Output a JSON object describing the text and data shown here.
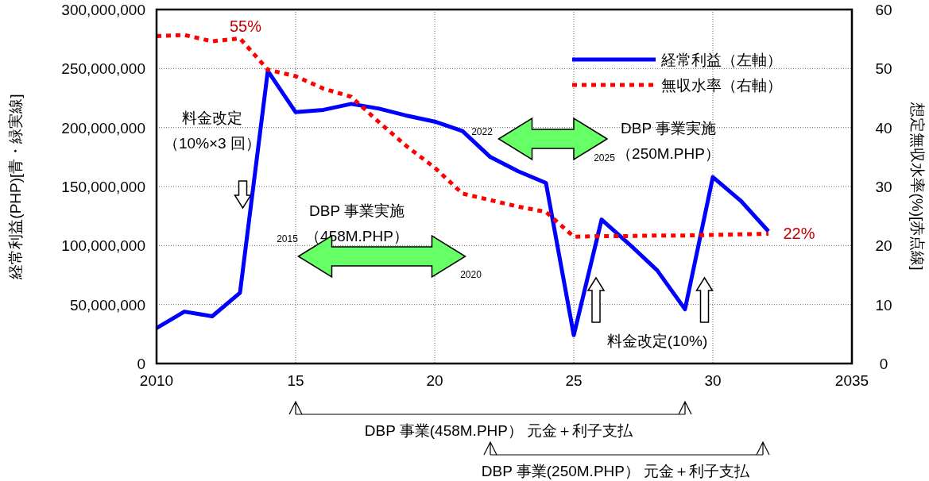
{
  "chart_data": {
    "type": "line",
    "xlabel": null,
    "ylabel": "経常利益(PHP)[青・緑実線]",
    "y2label": "想定無収水率(%)[赤点線]",
    "xlim": [
      2010,
      2035
    ],
    "xticks": [
      {
        "value": 2010,
        "label": "2010"
      },
      {
        "value": 2015,
        "label": "15"
      },
      {
        "value": 2020,
        "label": "20"
      },
      {
        "value": 2025,
        "label": "25"
      },
      {
        "value": 2030,
        "label": "30"
      },
      {
        "value": 2035,
        "label": "2035"
      }
    ],
    "ylim": [
      0,
      300000000
    ],
    "yticks": [
      {
        "value": 0,
        "label": "0"
      },
      {
        "value": 50000000,
        "label": "50,000,000"
      },
      {
        "value": 100000000,
        "label": "100,000,000"
      },
      {
        "value": 150000000,
        "label": "150,000,000"
      },
      {
        "value": 200000000,
        "label": "200,000,000"
      },
      {
        "value": 250000000,
        "label": "250,000,000"
      },
      {
        "value": 300000000,
        "label": "300,000,000"
      }
    ],
    "y2lim": [
      0,
      60
    ],
    "y2ticks": [
      0,
      10,
      20,
      30,
      40,
      50,
      60
    ],
    "grid": true,
    "legend": "top right",
    "x": [
      2010,
      2011,
      2012,
      2013,
      2014,
      2015,
      2016,
      2017,
      2018,
      2019,
      2020,
      2021,
      2022,
      2023,
      2024,
      2025,
      2026,
      2027,
      2028,
      2029,
      2030,
      2031,
      2032
    ],
    "series": [
      {
        "name": "経常利益（左軸）",
        "color": "#0000ff",
        "line_style": "solid",
        "values": [
          30000000,
          44000000,
          40000000,
          60000000,
          248000000,
          213000000,
          215000000,
          220000000,
          216000000,
          210000000,
          205000000,
          197000000,
          175000000,
          163000000,
          153000000,
          24000000,
          122000000,
          101000000,
          79000000,
          46000000,
          158000000,
          138000000,
          112000000
        ]
      },
      {
        "name": "無収水率（右軸）",
        "color": "#ff0000",
        "line_style": "dotted",
        "axis": "y2",
        "values": [
          55.5,
          55.7,
          54.6,
          55.1,
          49.8,
          48.7,
          46.6,
          45.2,
          40.9,
          36.8,
          33.2,
          28.8,
          27.7,
          26.6,
          25.7,
          21.5,
          21.6,
          21.6,
          21.7,
          21.7,
          21.8,
          21.9,
          22
        ]
      }
    ],
    "annotations": [
      "55%",
      "22%",
      "料金改定",
      "（10%×3 回）",
      "DBP 事業実施",
      "（458M.PHP）",
      "2015",
      "2020",
      "DBP 事業実施",
      "（250M.PHP）",
      "2022",
      "2025",
      "料金改定(10%)",
      "DBP 事業(458M.PHP） 元金＋利子支払",
      "DBP 事業(250M.PHP） 元金＋利子支払"
    ]
  }
}
